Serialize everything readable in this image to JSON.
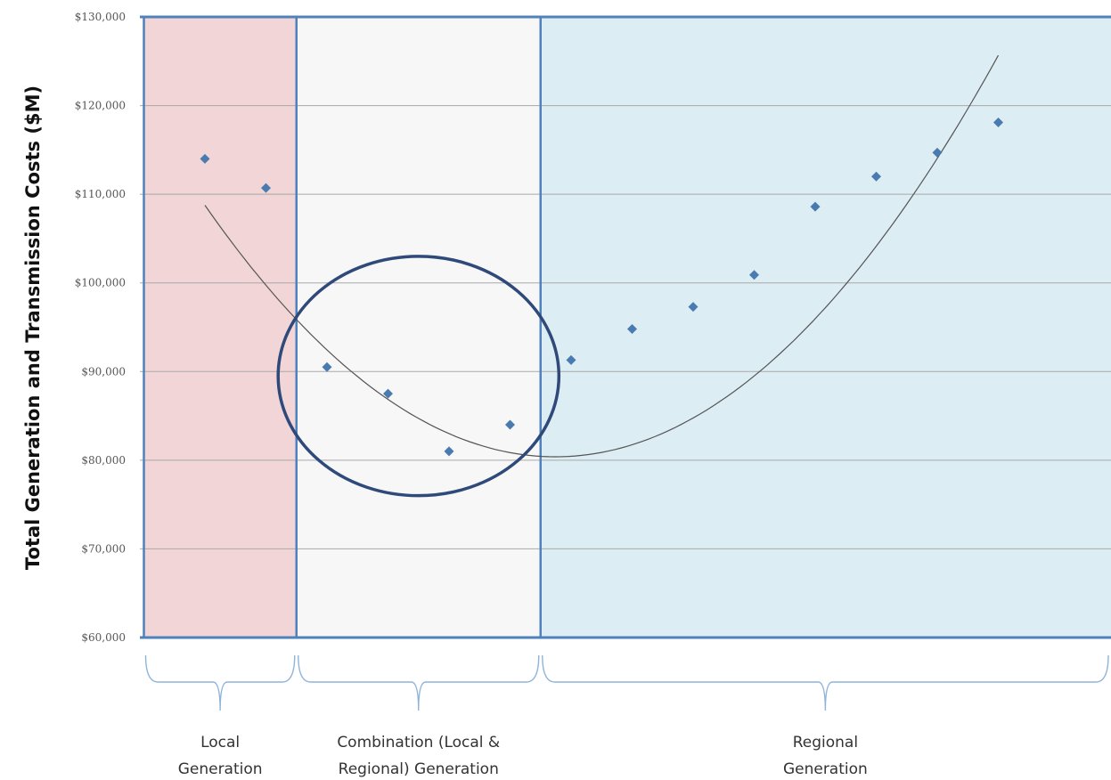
{
  "chart_data": {
    "type": "scatter",
    "title": "",
    "ylabel": "Total Generation and Transmission Costs ($M)",
    "xlabel": "",
    "ylim": [
      60000,
      130000
    ],
    "xlim": [
      0,
      17
    ],
    "grid": true,
    "yticks": [
      {
        "value": 130000,
        "label": "$130,000"
      },
      {
        "value": 120000,
        "label": "$120,000"
      },
      {
        "value": 110000,
        "label": "$110,000"
      },
      {
        "value": 100000,
        "label": "$100,000"
      },
      {
        "value": 90000,
        "label": "$90,000"
      },
      {
        "value": 80000,
        "label": "$80,000"
      },
      {
        "value": 70000,
        "label": "$70,000"
      },
      {
        "value": 60000,
        "label": "$60,000"
      }
    ],
    "regions": [
      {
        "x0": 0,
        "x1": 2.5,
        "color": "#f2d5d6",
        "line1": "Local",
        "line2": "Generation"
      },
      {
        "x0": 2.5,
        "x1": 6.5,
        "color": "#f7f7f7",
        "line1": "Combination (Local &",
        "line2": "Regional) Generation"
      },
      {
        "x0": 6.5,
        "x1": 17,
        "color": "#dcedf3",
        "line1": "Regional",
        "line2": "Generation"
      }
    ],
    "points": [
      {
        "x": 1,
        "y": 114000
      },
      {
        "x": 2,
        "y": 110700
      },
      {
        "x": 3,
        "y": 90500
      },
      {
        "x": 4,
        "y": 87500
      },
      {
        "x": 5,
        "y": 81000
      },
      {
        "x": 6,
        "y": 84000
      },
      {
        "x": 7,
        "y": 91300
      },
      {
        "x": 8,
        "y": 94800
      },
      {
        "x": 9,
        "y": 97300
      },
      {
        "x": 10,
        "y": 100900
      },
      {
        "x": 11,
        "y": 108600
      },
      {
        "x": 12,
        "y": 112000
      },
      {
        "x": 13,
        "y": 114700
      },
      {
        "x": 14,
        "y": 118100
      }
    ],
    "trendline": {
      "type": "polynomial-2",
      "x_start": 1,
      "x_end": 14,
      "coefficients": [
        119500,
        -11600,
        860
      ]
    },
    "highlight": {
      "cx": 4.5,
      "cy": 89500,
      "rx": 2.3,
      "ry": 13500
    },
    "colors": {
      "marker": "#4a7bb0",
      "trend": "#555555",
      "divider": "#4f81bd",
      "grid": "#a9a9a9",
      "ellipse": "#2f4a7a",
      "brace": "#8fb4d9"
    }
  }
}
